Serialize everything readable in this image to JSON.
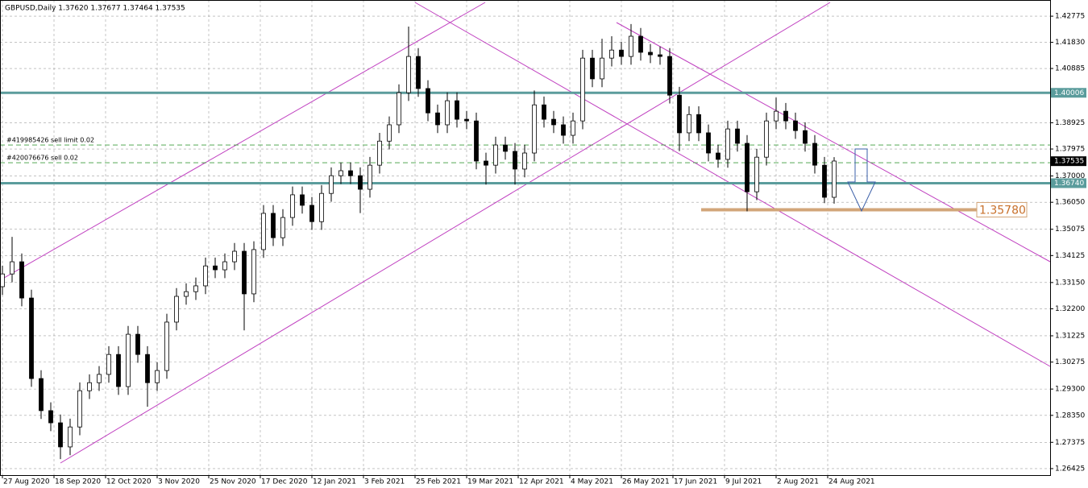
{
  "chart_data": {
    "type": "candlestick",
    "title": "GBPUSD,Daily  1.37620 1.37677 1.37464 1.37535",
    "x": [
      0,
      3,
      6,
      9,
      12,
      15,
      18,
      21,
      24,
      27,
      30,
      33,
      36,
      39,
      42,
      45,
      48,
      51,
      54,
      57,
      60,
      63,
      66,
      69,
      72,
      75,
      78,
      81,
      84,
      87,
      90,
      93,
      96,
      99,
      102,
      105,
      108,
      111,
      114,
      117,
      120,
      123,
      126,
      129,
      132,
      135,
      138,
      141,
      144,
      147,
      150,
      153,
      156,
      159,
      162,
      165,
      168,
      171,
      174,
      177,
      180,
      183,
      186,
      189,
      192,
      195,
      198,
      201,
      204,
      207,
      210,
      213,
      216,
      219,
      222,
      225,
      228,
      231,
      234,
      237,
      240,
      243,
      246,
      249,
      252,
      255,
      258
    ],
    "open": [
      1.33,
      1.3346,
      1.339,
      1.3259,
      1.2968,
      1.2852,
      1.2808,
      1.2721,
      1.2793,
      1.2924,
      1.2953,
      1.2983,
      1.3055,
      1.2939,
      1.3128,
      1.3055,
      1.2953,
      1.2997,
      1.3172,
      1.3265,
      1.3282,
      1.3303,
      1.3375,
      1.3361,
      1.339,
      1.3428,
      1.3274,
      1.3434,
      1.3565,
      1.3477,
      1.355,
      1.3632,
      1.3594,
      1.3535,
      1.3637,
      1.3701,
      1.3719,
      1.3701,
      1.3652,
      1.3739,
      1.3826,
      1.3885,
      1.4001,
      1.4132,
      1.4016,
      1.3928,
      1.3885,
      1.3972,
      1.3905,
      1.3899,
      1.3754,
      1.3739,
      1.3812,
      1.3789,
      1.3725,
      1.3783,
      1.3957,
      1.3905,
      1.3885,
      1.3847,
      1.3899,
      1.4126,
      1.4051,
      1.4126,
      1.4155,
      1.4132,
      1.4205,
      1.4147,
      1.4138,
      1.4132,
      1.3992,
      1.3856,
      1.3922,
      1.3856,
      1.3783,
      1.376,
      1.387,
      1.3818,
      1.3643,
      1.3768,
      1.3899,
      1.3934,
      1.3899,
      1.3864,
      1.3818,
      1.3739,
      1.3623
    ],
    "high": [
      1.3376,
      1.348,
      1.342,
      1.3289,
      1.2998,
      1.2882,
      1.2838,
      1.2823,
      1.2954,
      1.2983,
      1.3013,
      1.3085,
      1.3085,
      1.3158,
      1.3158,
      1.3085,
      1.3027,
      1.3202,
      1.3295,
      1.3312,
      1.3333,
      1.3405,
      1.3405,
      1.342,
      1.3458,
      1.3458,
      1.3464,
      1.3595,
      1.3595,
      1.358,
      1.3662,
      1.3662,
      1.3624,
      1.3667,
      1.3731,
      1.3749,
      1.3749,
      1.3731,
      1.3769,
      1.3856,
      1.3915,
      1.4031,
      1.424,
      1.4162,
      1.4046,
      1.3958,
      1.4002,
      1.4002,
      1.3935,
      1.3929,
      1.3784,
      1.3842,
      1.3842,
      1.3819,
      1.3813,
      1.4009,
      1.3987,
      1.3935,
      1.3915,
      1.3929,
      1.4156,
      1.4156,
      1.4196,
      1.4205,
      1.4185,
      1.4249,
      1.4235,
      1.4177,
      1.4168,
      1.4162,
      1.4022,
      1.3952,
      1.3952,
      1.3886,
      1.3813,
      1.39,
      1.39,
      1.3848,
      1.3798,
      1.3929,
      1.3983,
      1.3964,
      1.3929,
      1.3894,
      1.3848,
      1.3769,
      1.3768
    ],
    "low": [
      1.327,
      1.3316,
      1.3229,
      1.2938,
      1.2822,
      1.2778,
      1.2677,
      1.2691,
      1.2763,
      1.2894,
      1.2923,
      1.2953,
      1.2909,
      1.2909,
      1.3025,
      1.2866,
      1.2923,
      1.2967,
      1.3142,
      1.3235,
      1.3252,
      1.3273,
      1.3331,
      1.3331,
      1.336,
      1.3142,
      1.3244,
      1.3404,
      1.3447,
      1.3447,
      1.352,
      1.3564,
      1.3505,
      1.3505,
      1.3607,
      1.3671,
      1.3671,
      1.3566,
      1.3622,
      1.3709,
      1.3796,
      1.3855,
      1.3971,
      1.3986,
      1.3898,
      1.3855,
      1.3855,
      1.3875,
      1.3869,
      1.3724,
      1.3669,
      1.3709,
      1.3759,
      1.3669,
      1.3695,
      1.3753,
      1.3875,
      1.3855,
      1.3817,
      1.3817,
      1.3869,
      1.4021,
      1.4021,
      1.4096,
      1.4102,
      1.4102,
      1.4117,
      1.4108,
      1.4102,
      1.3962,
      1.379,
      1.3826,
      1.3826,
      1.3753,
      1.373,
      1.373,
      1.3788,
      1.3572,
      1.3613,
      1.3738,
      1.3869,
      1.3869,
      1.3834,
      1.3788,
      1.3709,
      1.3602,
      1.36
    ],
    "close": [
      1.3346,
      1.339,
      1.3259,
      1.2968,
      1.2852,
      1.2808,
      1.2721,
      1.2793,
      1.2924,
      1.2953,
      1.2983,
      1.3055,
      1.2939,
      1.3128,
      1.3055,
      1.2953,
      1.2997,
      1.3172,
      1.3265,
      1.3282,
      1.3303,
      1.3375,
      1.3361,
      1.339,
      1.3428,
      1.3274,
      1.3434,
      1.3565,
      1.3477,
      1.355,
      1.3632,
      1.3594,
      1.3535,
      1.3637,
      1.3701,
      1.3719,
      1.3701,
      1.3652,
      1.3739,
      1.3826,
      1.3885,
      1.4001,
      1.4132,
      1.4016,
      1.3928,
      1.3885,
      1.3972,
      1.3905,
      1.3899,
      1.3754,
      1.3739,
      1.3812,
      1.3789,
      1.3725,
      1.3783,
      1.3957,
      1.3905,
      1.3885,
      1.3847,
      1.3899,
      1.4126,
      1.4051,
      1.4126,
      1.4155,
      1.4132,
      1.4205,
      1.4147,
      1.4138,
      1.4132,
      1.3992,
      1.3856,
      1.3922,
      1.3856,
      1.3783,
      1.376,
      1.387,
      1.3818,
      1.3643,
      1.3768,
      1.3899,
      1.3934,
      1.3899,
      1.3864,
      1.3818,
      1.3739,
      1.3623,
      1.3754
    ],
    "xlim": [
      -0.75,
      325
    ],
    "xticks": [
      {
        "value": 0,
        "label": "27 Aug 2020"
      },
      {
        "value": 16,
        "label": "18 Sep 2020"
      },
      {
        "value": 32,
        "label": "12 Oct 2020"
      },
      {
        "value": 48,
        "label": "3 Nov 2020"
      },
      {
        "value": 64,
        "label": "25 Nov 2020"
      },
      {
        "value": 80,
        "label": "17 Dec 2020"
      },
      {
        "value": 96,
        "label": "12 Jan 2021"
      },
      {
        "value": 112,
        "label": "3 Feb 2021"
      },
      {
        "value": 128,
        "label": "25 Feb 2021"
      },
      {
        "value": 144,
        "label": "19 Mar 2021"
      },
      {
        "value": 160,
        "label": "12 Apr 2021"
      },
      {
        "value": 176,
        "label": "4 May 2021"
      },
      {
        "value": 192,
        "label": "26 May 2021"
      },
      {
        "value": 208,
        "label": "17 Jun 2021"
      },
      {
        "value": 224,
        "label": "9 Jul 2021"
      },
      {
        "value": 240,
        "label": "2 Aug 2021"
      },
      {
        "value": 256,
        "label": "24 Aug 2021"
      }
    ],
    "ylim": [
      1.2619,
      1.4336
    ],
    "yticks": [
      1.42775,
      {
        "value": 1.4183,
        "label": "1.41830"
      },
      1.40885,
      1.38925,
      1.37975,
      {
        "value": 1.37,
        "label": "1.37000"
      },
      {
        "value": 1.3605,
        "label": "1.36050"
      },
      1.35075,
      1.34125,
      {
        "value": 1.3315,
        "label": "1.33150"
      },
      {
        "value": 1.322,
        "label": "1.32200"
      },
      1.31225,
      1.30275,
      {
        "value": 1.293,
        "label": "1.29300"
      },
      {
        "value": 1.2835,
        "label": "1.28350"
      },
      1.27375,
      1.26425
    ],
    "grid": true,
    "levels": [
      {
        "value": 1.40006,
        "label": "1.40006",
        "color": "#5b9c9c"
      },
      {
        "value": 1.3674,
        "label": "1.36740",
        "color": "#5b9c9c"
      },
      {
        "value": 1.37535,
        "label": "1.37535",
        "color": "#000000"
      }
    ],
    "target": {
      "value": 1.3578,
      "label": "1.35780",
      "color": "#d2a679"
    },
    "orders": [
      {
        "label": "#419985426 sell limit 0.02",
        "price": 1.3812
      },
      {
        "label": "#420076676 sell 0.02",
        "price": 1.3748
      }
    ]
  }
}
